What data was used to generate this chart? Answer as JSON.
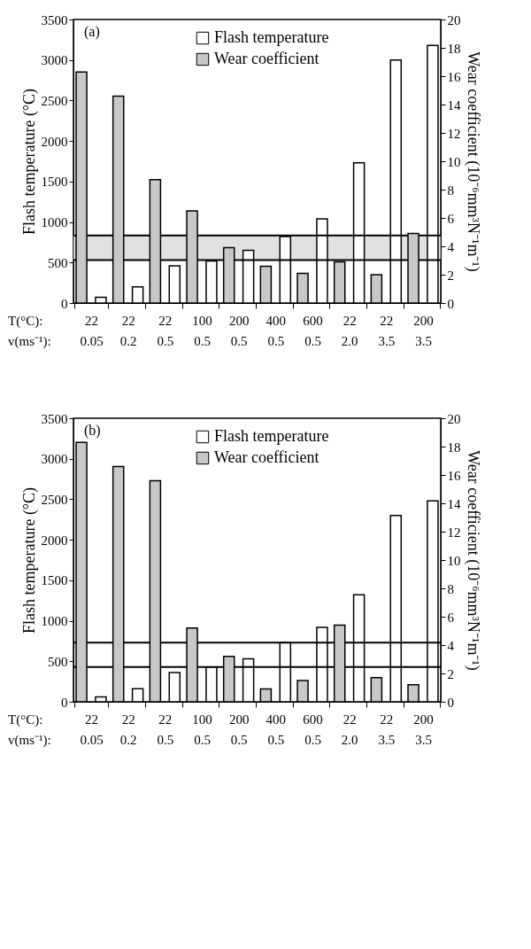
{
  "chart_data": [
    {
      "type": "bar",
      "title": "(a)",
      "categories": [
        "22\n0.05",
        "22\n0.2",
        "22\n0.5",
        "100\n0.5",
        "200\n0.5",
        "400\n0.5",
        "600\n0.5",
        "22\n2.0",
        "22\n3.5",
        "200\n3.5"
      ],
      "series": [
        {
          "name": "Flash temperature",
          "color": "#ffffff",
          "values": [
            70,
            200,
            460,
            520,
            650,
            820,
            1040,
            1730,
            3000,
            3180
          ]
        },
        {
          "name": "Wear coefficient",
          "color": "#c8c8c8",
          "axis": "y2",
          "values": [
            16.3,
            14.6,
            8.7,
            6.5,
            3.9,
            2.6,
            2.1,
            2.9,
            2.0,
            4.9
          ]
        }
      ],
      "ylabel": "Flash temperature (°C)",
      "y2label": "Wear coefficient (10⁻⁶mm³N⁻¹m⁻¹)",
      "ylim": [
        0,
        3500
      ],
      "yticks": [
        0,
        500,
        1000,
        1500,
        2000,
        2500,
        3000,
        3500
      ],
      "y2lim": [
        0,
        20
      ],
      "y2ticks": [
        0,
        2,
        4,
        6,
        8,
        10,
        12,
        14,
        16,
        18,
        20
      ],
      "ref_lines": [
        {
          "axis": "y",
          "value": 835,
          "label": null
        },
        {
          "axis": "y",
          "value": 530,
          "label": null
        }
      ],
      "bands": [
        {
          "axis": "y",
          "from": 530,
          "to": 835,
          "label": null,
          "color": "#d9d9d9"
        }
      ],
      "annotations": [
        "T(°C):",
        "v(ms⁻¹):"
      ],
      "legend": "top",
      "grid": false
    },
    {
      "type": "bar",
      "title": "(b)",
      "categories": [
        "22\n0.05",
        "22\n0.2",
        "22\n0.5",
        "100\n0.5",
        "200\n0.5",
        "400\n0.5",
        "600\n0.5",
        "22\n2.0",
        "22\n3.5",
        "200\n3.5"
      ],
      "series": [
        {
          "name": "Flash temperature",
          "color": "#ffffff",
          "values": [
            60,
            160,
            360,
            430,
            530,
            730,
            920,
            1320,
            2300,
            2480
          ]
        },
        {
          "name": "Wear coefficient",
          "color": "#c8c8c8",
          "axis": "y2",
          "values": [
            18.3,
            16.6,
            15.6,
            5.2,
            3.2,
            0.9,
            1.5,
            5.4,
            1.7,
            1.2
          ]
        }
      ],
      "ylabel": "Flash temperature (°C)",
      "y2label": "Wear coefficient (10⁻⁶mm³N⁻¹m⁻¹)",
      "ylim": [
        0,
        3500
      ],
      "yticks": [
        0,
        500,
        1000,
        1500,
        2000,
        2500,
        3000,
        3500
      ],
      "y2lim": [
        0,
        20
      ],
      "y2ticks": [
        0,
        2,
        4,
        6,
        8,
        10,
        12,
        14,
        16,
        18,
        20
      ],
      "ref_lines": [
        {
          "axis": "y",
          "value": 730,
          "label": null
        },
        {
          "axis": "y",
          "value": 430,
          "label": null
        }
      ],
      "annotations": [
        "T(°C):",
        "v(ms⁻¹):"
      ],
      "legend": "top",
      "grid": false
    }
  ]
}
